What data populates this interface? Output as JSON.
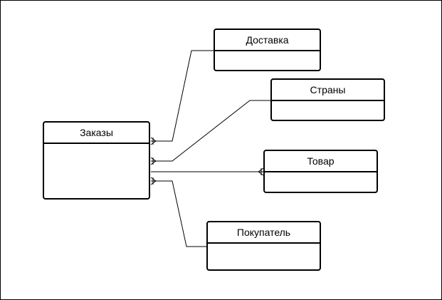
{
  "diagram": {
    "entities": {
      "orders": {
        "label": "Заказы"
      },
      "delivery": {
        "label": "Доставка"
      },
      "countries": {
        "label": "Страны"
      },
      "product": {
        "label": "Товар"
      },
      "customer": {
        "label": "Покупатель"
      }
    },
    "relationships": [
      {
        "from": "orders",
        "to": "delivery",
        "from_cardinality": "one-or-many"
      },
      {
        "from": "orders",
        "to": "countries",
        "from_cardinality": "one-or-many"
      },
      {
        "from": "orders",
        "to": "product",
        "from_cardinality": "one-or-many",
        "to_cardinality": "one-or-many"
      },
      {
        "from": "orders",
        "to": "customer",
        "from_cardinality": "one-or-many"
      }
    ],
    "colors": {
      "stroke": "#000000",
      "fill": "#ffffff"
    }
  }
}
